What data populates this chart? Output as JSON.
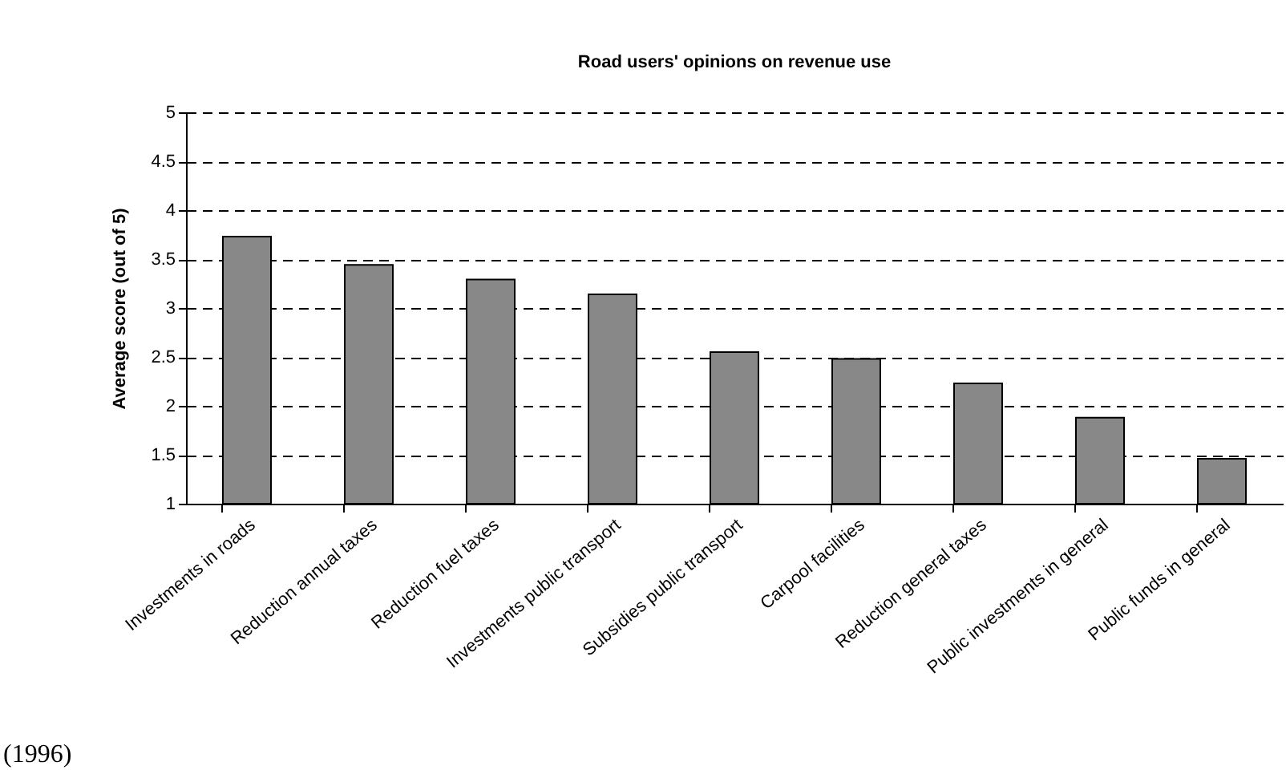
{
  "chart_data": {
    "type": "bar",
    "title": "Road users' opinions on revenue use",
    "ylabel": "Average score (out of 5)",
    "categories": [
      "Investments in roads",
      "Reduction annual taxes",
      "Reduction fuel taxes",
      "Investments public transport",
      "Subsidies public transport",
      "Carpool facilities",
      "Reduction general taxes",
      "Public investments in general",
      "Public funds in general"
    ],
    "values": [
      3.73,
      3.44,
      3.29,
      3.14,
      2.55,
      2.48,
      2.23,
      1.88,
      1.46
    ],
    "color": "#888888",
    "ylim": [
      1,
      5
    ],
    "yticks": [
      1,
      1.5,
      2,
      2.5,
      3,
      3.5,
      4,
      4.5,
      5
    ],
    "grid": true,
    "line_style": "dashed",
    "annotations": [
      "(1996)"
    ]
  }
}
